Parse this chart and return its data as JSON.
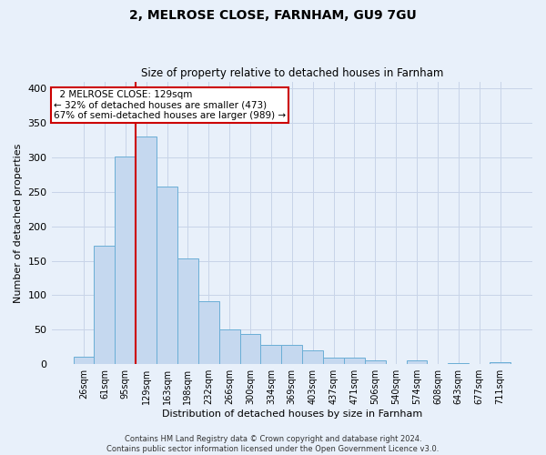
{
  "title": "2, MELROSE CLOSE, FARNHAM, GU9 7GU",
  "subtitle": "Size of property relative to detached houses in Farnham",
  "xlabel": "Distribution of detached houses by size in Farnham",
  "ylabel": "Number of detached properties",
  "footer_line1": "Contains HM Land Registry data © Crown copyright and database right 2024.",
  "footer_line2": "Contains public sector information licensed under the Open Government Licence v3.0.",
  "annotation_line1": "2 MELROSE CLOSE: 129sqm",
  "annotation_line2": "← 32% of detached houses are smaller (473)",
  "annotation_line3": "67% of semi-detached houses are larger (989) →",
  "bar_labels": [
    "26sqm",
    "61sqm",
    "95sqm",
    "129sqm",
    "163sqm",
    "198sqm",
    "232sqm",
    "266sqm",
    "300sqm",
    "334sqm",
    "369sqm",
    "403sqm",
    "437sqm",
    "471sqm",
    "506sqm",
    "540sqm",
    "574sqm",
    "608sqm",
    "643sqm",
    "677sqm",
    "711sqm"
  ],
  "bar_values": [
    11,
    172,
    301,
    330,
    258,
    153,
    92,
    50,
    44,
    28,
    28,
    20,
    10,
    10,
    5,
    0,
    5,
    0,
    2,
    0,
    3
  ],
  "bar_color": "#c5d8ef",
  "bar_edge_color": "#6aaed6",
  "red_line_index": 3,
  "ylim": [
    0,
    410
  ],
  "yticks": [
    0,
    50,
    100,
    150,
    200,
    250,
    300,
    350,
    400
  ],
  "bg_color": "#e8f0fa",
  "plot_bg_color": "#e8f0fa",
  "grid_color": "#c8d4e8",
  "annotation_box_color": "#ffffff",
  "annotation_box_edge_color": "#cc0000",
  "red_line_color": "#cc0000",
  "title_fontsize": 10,
  "subtitle_fontsize": 8.5,
  "tick_fontsize": 7,
  "ylabel_fontsize": 8,
  "xlabel_fontsize": 8,
  "annotation_fontsize": 7.5
}
